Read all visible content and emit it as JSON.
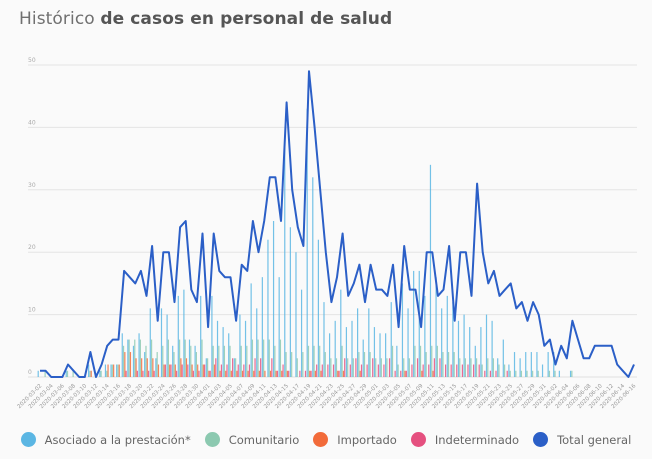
{
  "title": {
    "light": "Histórico",
    "bold": "de casos en personal de salud"
  },
  "chart_data": {
    "type": "bar+line",
    "title": "Histórico de casos en personal de salud",
    "xlabel": "",
    "ylabel": "",
    "ylim": [
      0,
      50
    ],
    "yticks": [
      "0",
      "10",
      "20",
      "30",
      "40",
      "50"
    ],
    "grid": true,
    "legend_position": "bottom",
    "start_date": "2020-03-02",
    "x_tick_labels": [
      "2020-03-02",
      "2020-03-04",
      "2020-03-06",
      "2020-03-08",
      "2020-03-10",
      "2020-03-12",
      "2020-03-14",
      "2020-03-16",
      "2020-03-18",
      "2020-03-20",
      "2020-03-22",
      "2020-03-24",
      "2020-03-26",
      "2020-03-28",
      "2020-03-30",
      "2020-04-01",
      "2020-04-03",
      "2020-04-05",
      "2020-04-07",
      "2020-04-09",
      "2020-04-11",
      "2020-04-13",
      "2020-04-15",
      "2020-04-17",
      "2020-04-19",
      "2020-04-21",
      "2020-04-23",
      "2020-04-25",
      "2020-04-27",
      "2020-04-29",
      "2020-05-01",
      "2020-05-03",
      "2020-05-05",
      "2020-05-07",
      "2020-05-09",
      "2020-05-11",
      "2020-05-13",
      "2020-05-15",
      "2020-05-17",
      "2020-05-19",
      "2020-05-21",
      "2020-05-23",
      "2020-05-25",
      "2020-05-27",
      "2020-05-29",
      "2020-05-31",
      "2020-06-02",
      "2020-06-04",
      "2020-06-06",
      "2020-06-08",
      "2020-06-10",
      "2020-06-12",
      "2020-06-14",
      "2020-06-16"
    ],
    "series": [
      {
        "name": "Asociado a la prestación*",
        "type": "bar",
        "color": "#5bb6e3",
        "values": [
          1,
          0,
          0,
          0,
          0,
          1,
          0,
          0,
          0,
          2,
          0,
          1,
          2,
          2,
          2,
          7,
          6,
          5,
          7,
          4,
          11,
          3,
          11,
          10,
          5,
          13,
          14,
          6,
          5,
          13,
          3,
          13,
          9,
          8,
          7,
          3,
          10,
          9,
          15,
          11,
          16,
          22,
          25,
          16,
          38,
          24,
          20,
          14,
          43,
          32,
          22,
          12,
          7,
          9,
          14,
          8,
          9,
          11,
          6,
          11,
          8,
          7,
          7,
          12,
          5,
          15,
          11,
          17,
          17,
          13,
          34,
          16,
          11,
          13,
          12,
          9,
          10,
          8,
          5,
          8,
          10,
          9,
          3,
          6,
          2,
          4,
          3,
          4,
          4,
          4,
          2,
          4,
          4,
          1,
          0,
          1,
          0,
          0,
          0,
          0,
          0,
          0,
          0,
          0,
          0,
          0,
          0
        ]
      },
      {
        "name": "Comunitario",
        "type": "bar",
        "color": "#8cc9b0",
        "values": [
          0,
          1,
          0,
          0,
          0,
          1,
          1,
          0,
          0,
          1,
          0,
          1,
          1,
          2,
          2,
          5,
          6,
          6,
          6,
          5,
          6,
          4,
          5,
          6,
          4,
          6,
          6,
          5,
          4,
          6,
          3,
          5,
          5,
          5,
          5,
          3,
          5,
          5,
          6,
          6,
          6,
          6,
          5,
          6,
          4,
          4,
          3,
          4,
          5,
          5,
          5,
          4,
          3,
          3,
          5,
          3,
          3,
          4,
          4,
          4,
          3,
          3,
          3,
          5,
          2,
          3,
          3,
          5,
          5,
          4,
          5,
          5,
          4,
          4,
          4,
          3,
          3,
          3,
          3,
          2,
          3,
          3,
          2,
          2,
          1,
          1,
          1,
          1,
          1,
          1,
          0,
          1,
          1,
          0,
          0,
          1,
          0,
          0,
          0,
          0,
          0,
          0,
          0,
          0,
          0,
          0,
          0
        ]
      },
      {
        "name": "Importado",
        "type": "bar",
        "color": "#f26b3a",
        "values": [
          0,
          0,
          0,
          0,
          0,
          0,
          0,
          0,
          0,
          1,
          0,
          0,
          2,
          2,
          2,
          4,
          4,
          3,
          3,
          3,
          3,
          2,
          2,
          2,
          2,
          3,
          3,
          2,
          2,
          2,
          1,
          2,
          1,
          1,
          1,
          1,
          1,
          1,
          1,
          1,
          1,
          1,
          1,
          1,
          1,
          0,
          0,
          0,
          1,
          1,
          1,
          0,
          0,
          1,
          1,
          0,
          0,
          1,
          0,
          0,
          0,
          0,
          0,
          0,
          0,
          1,
          0,
          0,
          1,
          0,
          1,
          0,
          0,
          0,
          0,
          0,
          0,
          0,
          0,
          0,
          0,
          0,
          0,
          0,
          0,
          0,
          0,
          0,
          0,
          0,
          0,
          0,
          0,
          0,
          0,
          0,
          0,
          0,
          0,
          0,
          0,
          0,
          0,
          0,
          0,
          0,
          0
        ]
      },
      {
        "name": "Indeterminado",
        "type": "bar",
        "color": "#e5507f",
        "values": [
          0,
          0,
          0,
          0,
          0,
          0,
          0,
          0,
          0,
          0,
          0,
          0,
          0,
          0,
          0,
          1,
          0,
          1,
          1,
          1,
          1,
          0,
          2,
          2,
          1,
          2,
          2,
          1,
          1,
          2,
          1,
          3,
          2,
          2,
          3,
          2,
          2,
          2,
          3,
          3,
          0,
          3,
          1,
          2,
          1,
          0,
          1,
          1,
          1,
          2,
          2,
          2,
          2,
          1,
          3,
          2,
          3,
          2,
          2,
          3,
          2,
          2,
          3,
          1,
          1,
          1,
          2,
          3,
          2,
          2,
          3,
          3,
          2,
          2,
          2,
          2,
          2,
          2,
          2,
          1,
          1,
          1,
          0,
          1,
          0,
          0,
          0,
          0,
          0,
          0,
          0,
          0,
          0,
          0,
          0,
          0,
          0,
          0,
          0,
          0,
          0,
          0,
          0,
          0,
          0,
          0,
          0
        ]
      },
      {
        "name": "Total general",
        "type": "line",
        "color": "#2b5fc7",
        "values": [
          1,
          1,
          0,
          0,
          0,
          2,
          1,
          0,
          0,
          4,
          0,
          2,
          5,
          6,
          6,
          17,
          16,
          15,
          17,
          13,
          21,
          9,
          20,
          20,
          12,
          24,
          25,
          14,
          12,
          23,
          8,
          23,
          17,
          16,
          16,
          9,
          18,
          17,
          25,
          20,
          25,
          32,
          32,
          25,
          44,
          30,
          24,
          21,
          49,
          40,
          30,
          20,
          12,
          16,
          23,
          13,
          15,
          18,
          12,
          18,
          14,
          14,
          13,
          18,
          8,
          21,
          14,
          14,
          8,
          20,
          20,
          13,
          14,
          21,
          9,
          20,
          20,
          13,
          31,
          20,
          15,
          17,
          13,
          14,
          15,
          11,
          12,
          9,
          12,
          10,
          5,
          6,
          2,
          5,
          3,
          9,
          6,
          3,
          3,
          5,
          5,
          5,
          5,
          2,
          1,
          0,
          2
        ]
      }
    ]
  },
  "legend": [
    {
      "label": "Asociado a la prestación*",
      "color": "#5bb6e3"
    },
    {
      "label": "Comunitario",
      "color": "#8cc9b0"
    },
    {
      "label": "Importado",
      "color": "#f26b3a"
    },
    {
      "label": "Indeterminado",
      "color": "#e5507f"
    },
    {
      "label": "Total general",
      "color": "#2b5fc7"
    }
  ]
}
